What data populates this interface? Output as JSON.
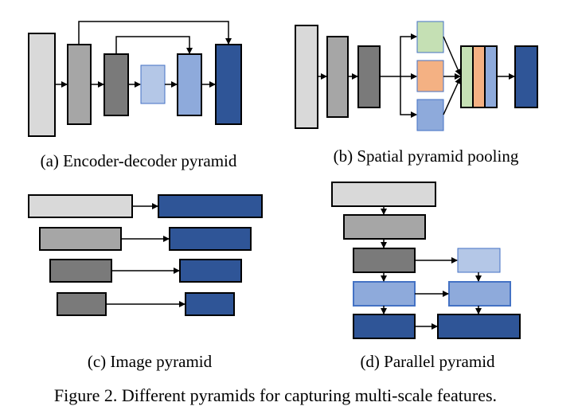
{
  "panels": {
    "a": {
      "label": "(a) Encoder-decoder pyramid"
    },
    "b": {
      "label": "(b) Spatial pyramid pooling"
    },
    "c": {
      "label": "(c) Image pyramid"
    },
    "d": {
      "label": "(d) Parallel pyramid"
    }
  },
  "caption": "Figure 2. Different pyramids for capturing multi-scale features.",
  "colors": {
    "light_gray": "#d9d9d9",
    "mid_gray": "#a6a6a6",
    "dark_gray": "#7a7a7a",
    "pale_blue": "#b4c7e7",
    "light_blue": "#8eaadb",
    "dark_blue": "#2f5597",
    "green": "#c5e0b4",
    "orange": "#f4b183",
    "arrow": "#000000"
  }
}
